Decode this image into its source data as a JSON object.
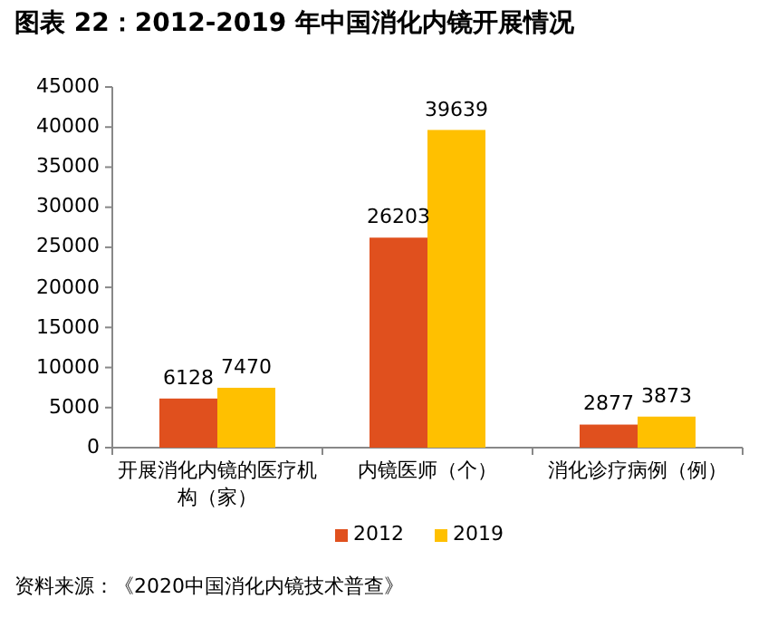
{
  "chart_data": {
    "type": "bar",
    "title": "图表 22：2012-2019 年中国消化内镜开展情况",
    "categories": [
      "开展消化内镜的医疗机构（家）",
      "内镜医师（个）",
      "消化诊疗病例（例）"
    ],
    "series": [
      {
        "name": "2012",
        "color": "#e0501e",
        "values": [
          6128,
          26203,
          2877
        ]
      },
      {
        "name": "2019",
        "color": "#ffc000",
        "values": [
          7470,
          39639,
          3873
        ]
      }
    ],
    "ylim": [
      0,
      45000
    ],
    "yticks": [
      0,
      5000,
      10000,
      15000,
      20000,
      25000,
      30000,
      35000,
      40000,
      45000
    ],
    "data_labels": true,
    "legend": "bottom",
    "annotations": [
      "资料来源：《2020中国消化内镜技术普查》"
    ]
  }
}
